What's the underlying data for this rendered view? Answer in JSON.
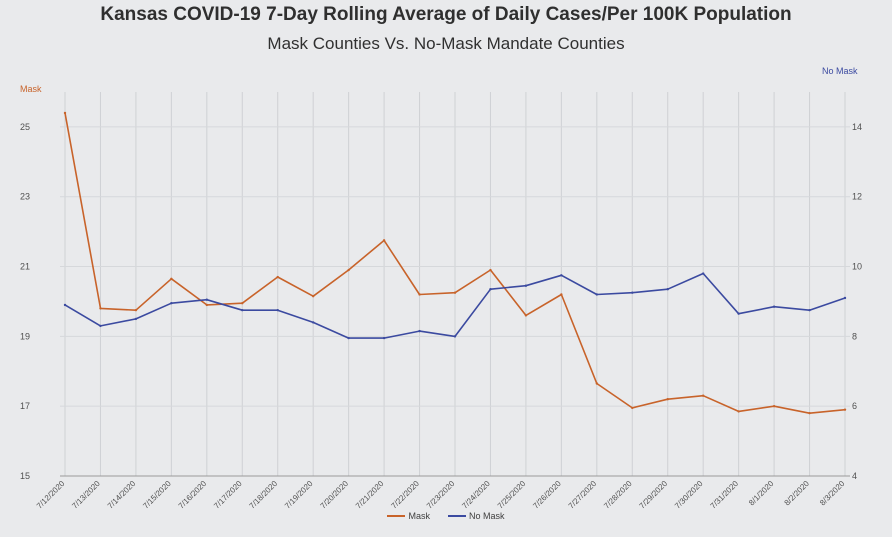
{
  "chart_data": {
    "type": "line",
    "title": "Kansas COVID-19 7-Day Rolling Average of Daily Cases/Per 100K Population",
    "subtitle": "Mask Counties Vs. No-Mask Mandate Counties",
    "x_labels": [
      "7/12/2020",
      "7/13/2020",
      "7/14/2020",
      "7/15/2020",
      "7/16/2020",
      "7/17/2020",
      "7/18/2020",
      "7/19/2020",
      "7/20/2020",
      "7/21/2020",
      "7/22/2020",
      "7/23/2020",
      "7/24/2020",
      "7/25/2020",
      "7/26/2020",
      "7/27/2020",
      "7/28/2020",
      "7/29/2020",
      "7/30/2020",
      "7/31/2020",
      "8/1/2020",
      "8/2/2020",
      "8/3/2020"
    ],
    "y_left": {
      "label": "Mask",
      "range": [
        15,
        26
      ],
      "ticks": [
        15,
        17,
        19,
        21,
        23,
        25
      ]
    },
    "y_right": {
      "label": "No Mask",
      "range": [
        4,
        15
      ],
      "ticks": [
        4,
        6,
        8,
        10,
        12,
        14
      ]
    },
    "series": [
      {
        "name": "Mask",
        "axis": "left",
        "color": "#c8632a",
        "values": [
          25.4,
          19.8,
          19.75,
          20.65,
          19.9,
          19.95,
          20.7,
          20.15,
          20.9,
          21.75,
          20.2,
          20.25,
          20.9,
          19.6,
          20.2,
          17.65,
          16.95,
          17.2,
          17.3,
          16.85,
          17.0,
          16.8,
          16.9
        ]
      },
      {
        "name": "No Mask",
        "axis": "right",
        "color": "#3b4aa0",
        "values": [
          8.9,
          8.3,
          8.5,
          8.95,
          9.05,
          8.75,
          8.75,
          8.4,
          7.95,
          7.95,
          8.15,
          8.0,
          9.35,
          9.45,
          9.75,
          9.2,
          9.25,
          9.35,
          9.8,
          8.65,
          8.85,
          8.75,
          9.1
        ]
      }
    ],
    "grid": true,
    "legend": "bottom-center"
  }
}
